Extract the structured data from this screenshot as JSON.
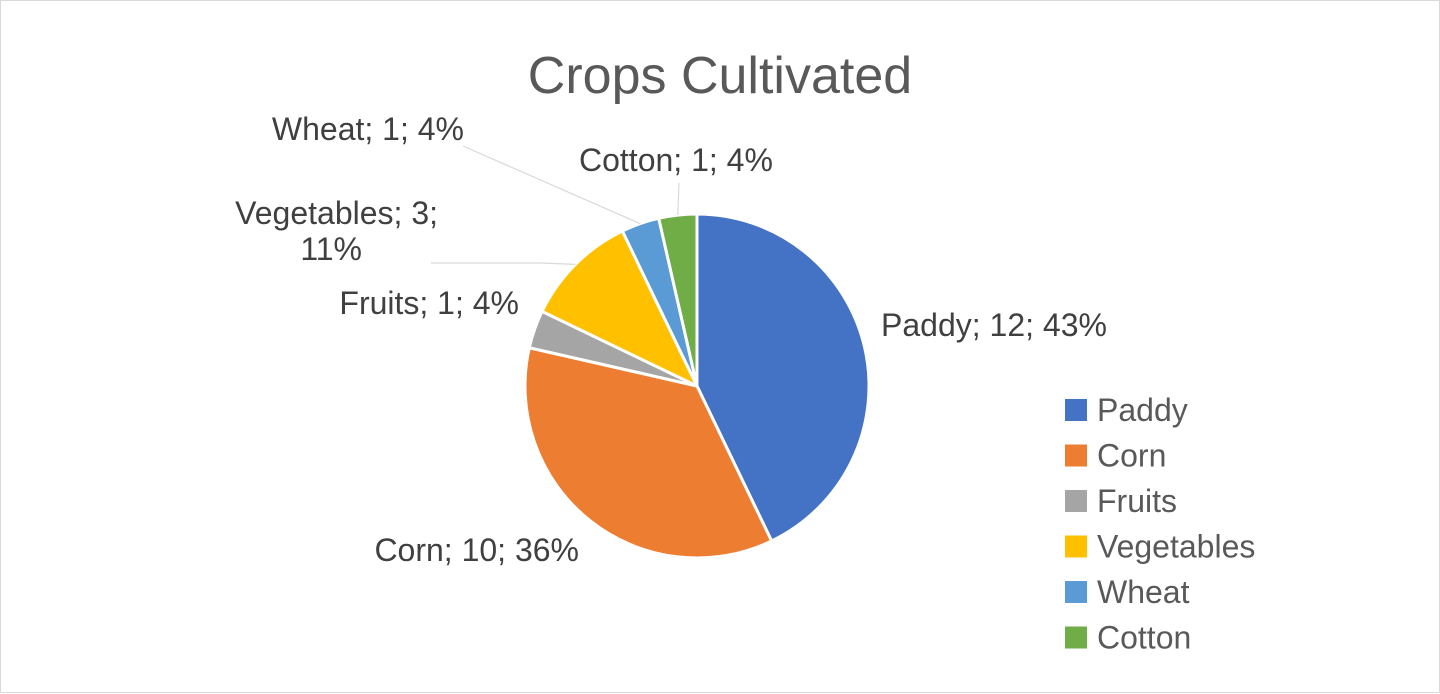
{
  "chart_data": {
    "type": "pie",
    "title": "Crops Cultivated",
    "categories": [
      "Paddy",
      "Corn",
      "Fruits",
      "Vegetables",
      "Wheat",
      "Cotton"
    ],
    "values": [
      12,
      10,
      1,
      3,
      1,
      1
    ],
    "percentages": [
      "43%",
      "36%",
      "4%",
      "11%",
      "4%",
      "4%"
    ],
    "data_labels": [
      "Paddy; 12; 43%",
      "Corn; 10; 36%",
      "Fruits; 1; 4%",
      [
        "Vegetables; 3;",
        "11%"
      ],
      "Wheat; 1; 4%",
      "Cotton; 1; 4%"
    ],
    "colors": [
      "#4472c4",
      "#ed7d31",
      "#a5a5a5",
      "#ffc000",
      "#5b9bd5",
      "#70ad47"
    ],
    "legend": {
      "placement": "right",
      "entries": [
        "Paddy",
        "Corn",
        "Fruits",
        "Vegetables",
        "Wheat",
        "Cotton"
      ]
    }
  }
}
